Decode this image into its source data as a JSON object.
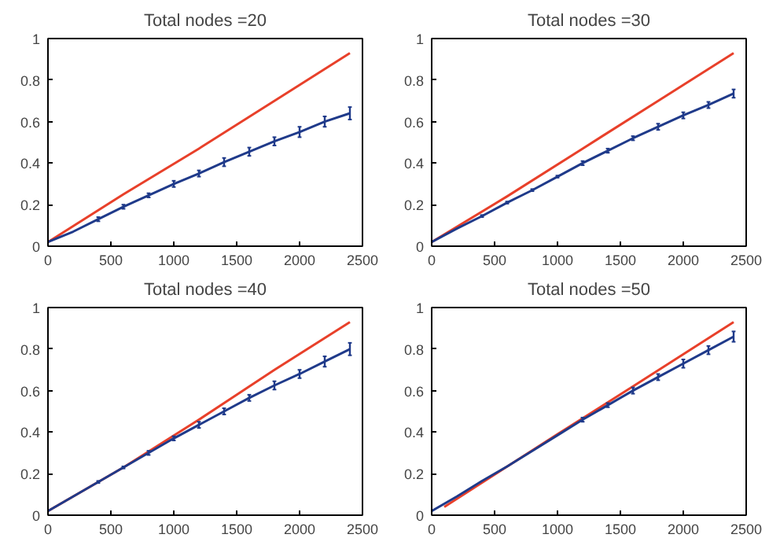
{
  "chart_data": [
    {
      "type": "line",
      "title": "Total nodes =20",
      "xlim": [
        0,
        2500
      ],
      "xticks": [
        0,
        500,
        1000,
        1500,
        2000,
        2500
      ],
      "ylim": [
        0,
        1
      ],
      "yticks": [
        0,
        0.2,
        0.4,
        0.6,
        0.8,
        1
      ],
      "grid": false,
      "series": [
        {
          "color": "#e8402a",
          "x": [
            0,
            600,
            1200,
            1800,
            2400
          ],
          "values": [
            0.02,
            0.25,
            0.47,
            0.7,
            0.93
          ]
        },
        {
          "color": "#1f3a8a",
          "x": [
            0,
            200,
            400,
            600,
            800,
            1000,
            1200,
            1400,
            1600,
            1800,
            2000,
            2200,
            2400
          ],
          "values": [
            0.02,
            0.07,
            0.13,
            0.19,
            0.245,
            0.3,
            0.35,
            0.405,
            0.455,
            0.505,
            0.55,
            0.6,
            0.64
          ],
          "errors": [
            null,
            null,
            0.01,
            0.01,
            0.01,
            0.015,
            0.015,
            0.02,
            0.02,
            0.02,
            0.025,
            0.025,
            0.03
          ]
        }
      ]
    },
    {
      "type": "line",
      "title": "Total nodes =30",
      "xlim": [
        0,
        2500
      ],
      "xticks": [
        0,
        500,
        1000,
        1500,
        2000,
        2500
      ],
      "ylim": [
        0,
        1
      ],
      "yticks": [
        0,
        0.2,
        0.4,
        0.6,
        0.8,
        1
      ],
      "grid": false,
      "series": [
        {
          "color": "#e8402a",
          "x": [
            0,
            600,
            1200,
            1800,
            2400
          ],
          "values": [
            0.02,
            0.24,
            0.47,
            0.7,
            0.93
          ]
        },
        {
          "color": "#1f3a8a",
          "x": [
            0,
            200,
            400,
            600,
            800,
            1000,
            1200,
            1400,
            1600,
            1800,
            2000,
            2200,
            2400
          ],
          "values": [
            0.02,
            0.085,
            0.145,
            0.21,
            0.27,
            0.335,
            0.4,
            0.46,
            0.52,
            0.575,
            0.63,
            0.68,
            0.735
          ],
          "errors": [
            null,
            null,
            0.005,
            0.005,
            0.005,
            0.005,
            0.01,
            0.01,
            0.01,
            0.015,
            0.015,
            0.015,
            0.02
          ]
        }
      ]
    },
    {
      "type": "line",
      "title": "Total nodes =40",
      "xlim": [
        0,
        2500
      ],
      "xticks": [
        0,
        500,
        1000,
        1500,
        2000,
        2500
      ],
      "ylim": [
        0,
        1
      ],
      "yticks": [
        0,
        0.2,
        0.4,
        0.6,
        0.8,
        1
      ],
      "grid": false,
      "series": [
        {
          "color": "#e8402a",
          "x": [
            0,
            600,
            1200,
            1800,
            2400
          ],
          "values": [
            0.02,
            0.23,
            0.46,
            0.7,
            0.93
          ]
        },
        {
          "color": "#1f3a8a",
          "x": [
            0,
            200,
            400,
            600,
            800,
            1000,
            1200,
            1400,
            1600,
            1800,
            2000,
            2200,
            2400
          ],
          "values": [
            0.02,
            0.09,
            0.16,
            0.23,
            0.3,
            0.37,
            0.435,
            0.5,
            0.565,
            0.625,
            0.68,
            0.74,
            0.8
          ],
          "errors": [
            null,
            null,
            0.005,
            0.005,
            0.01,
            0.01,
            0.015,
            0.015,
            0.015,
            0.02,
            0.02,
            0.025,
            0.03
          ]
        }
      ]
    },
    {
      "type": "line",
      "title": "Total nodes =50",
      "xlim": [
        0,
        2500
      ],
      "xticks": [
        0,
        500,
        1000,
        1500,
        2000,
        2500
      ],
      "ylim": [
        0,
        1
      ],
      "yticks": [
        0,
        0.2,
        0.4,
        0.6,
        0.8,
        1
      ],
      "grid": false,
      "series": [
        {
          "color": "#e8402a",
          "x": [
            100,
            1000,
            1600,
            2400
          ],
          "values": [
            0.04,
            0.39,
            0.62,
            0.93
          ]
        },
        {
          "color": "#1f3a8a",
          "x": [
            0,
            200,
            400,
            600,
            800,
            1000,
            1200,
            1400,
            1600,
            1800,
            2000,
            2200,
            2400
          ],
          "values": [
            0.02,
            0.09,
            0.165,
            0.235,
            0.31,
            0.385,
            0.46,
            0.53,
            0.6,
            0.665,
            0.73,
            0.795,
            0.86
          ],
          "errors": [
            null,
            null,
            null,
            null,
            null,
            null,
            0.01,
            0.01,
            0.015,
            0.015,
            0.02,
            0.02,
            0.025
          ]
        }
      ]
    }
  ]
}
